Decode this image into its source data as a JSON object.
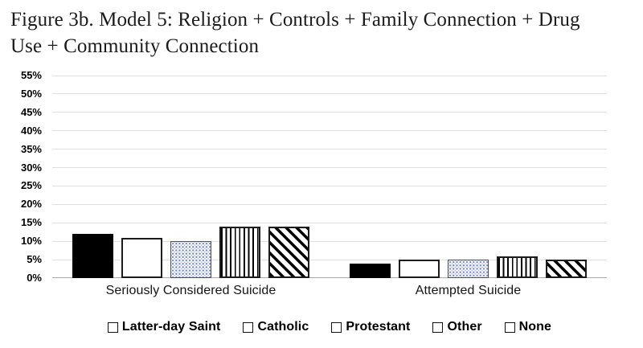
{
  "figure": {
    "title_lines": [
      "Figure 3b. Model 5: Religion + Controls + Family Connection + Drug",
      "Use + Community Connection"
    ]
  },
  "chart_data": {
    "type": "bar",
    "categories": [
      "Seriously Considered Suicide",
      "Attempted Suicide"
    ],
    "series": [
      {
        "name": "Latter-day Saint",
        "pattern": "solid-black",
        "values": [
          12,
          4
        ]
      },
      {
        "name": "Catholic",
        "pattern": "plain-white",
        "values": [
          11,
          5
        ]
      },
      {
        "name": "Protestant",
        "pattern": "dotted",
        "values": [
          10,
          5
        ]
      },
      {
        "name": "Other",
        "pattern": "vertical-stripes",
        "values": [
          14,
          6
        ]
      },
      {
        "name": "None",
        "pattern": "diagonal-stripes",
        "values": [
          14,
          5
        ]
      }
    ],
    "ylim": [
      0,
      55
    ],
    "ytick_step": 5,
    "ytick_labels": [
      "0%",
      "5%",
      "10%",
      "15%",
      "20%",
      "25%",
      "30%",
      "35%",
      "40%",
      "45%",
      "50%",
      "55%"
    ],
    "grid": true,
    "legend_position": "bottom",
    "colors": {
      "bar_fill": "#000000",
      "bar_outline": "#1c1c1c",
      "dot_pattern": "#6c84cd",
      "gridline": "#e0e0e0",
      "baseline": "#a8a8a8",
      "text": "#000000"
    }
  }
}
